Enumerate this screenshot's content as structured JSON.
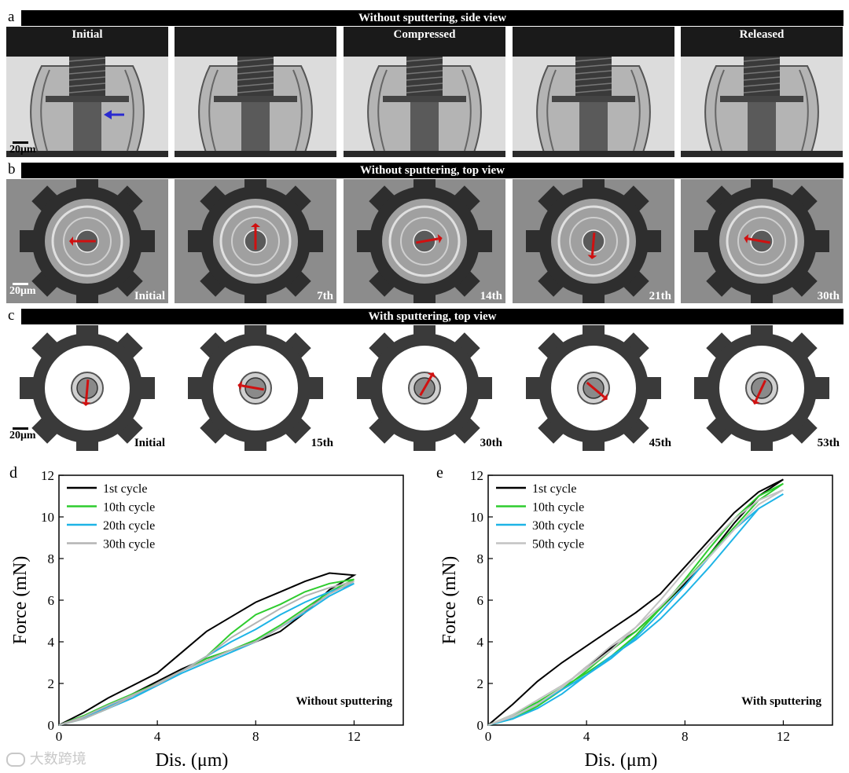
{
  "panels": {
    "a": {
      "letter": "a",
      "title": "Without sputtering, side view",
      "labels": [
        "Initial",
        "",
        "Compressed",
        "",
        "Released"
      ],
      "scale": "20μm"
    },
    "b": {
      "letter": "b",
      "title": "Without sputtering, top view",
      "labels": [
        "Initial",
        "7th",
        "14th",
        "21th",
        "30th"
      ],
      "arrow_angles_deg": [
        180,
        270,
        350,
        95,
        190
      ],
      "scale": "20μm"
    },
    "c": {
      "letter": "c",
      "title": "With sputtering, top view",
      "labels": [
        "Initial",
        "15th",
        "30th",
        "45th",
        "53th"
      ],
      "arrow_angles_deg": [
        95,
        190,
        300,
        40,
        115
      ],
      "scale": "20μm"
    }
  },
  "chart_data": [
    {
      "panel": "d",
      "type": "line",
      "xlabel": "Dis. (μm)",
      "ylabel": "Force (mN)",
      "xlim": [
        0,
        14
      ],
      "ylim": [
        0,
        12
      ],
      "xticks": [
        0,
        4,
        8,
        12
      ],
      "yticks": [
        0,
        2,
        4,
        6,
        8,
        10,
        12
      ],
      "annotation": "Without sputtering",
      "legend_position": "top-left",
      "series": [
        {
          "name": "1st cycle",
          "color": "#000000",
          "x": [
            0,
            1,
            2,
            3,
            4,
            5,
            6,
            7,
            8,
            9,
            10,
            11,
            12,
            11,
            10,
            9,
            8,
            7,
            6,
            5,
            4,
            3,
            2,
            1,
            0
          ],
          "y": [
            0,
            0.6,
            1.3,
            1.9,
            2.5,
            3.5,
            4.5,
            5.2,
            5.9,
            6.4,
            6.9,
            7.3,
            7.2,
            6.5,
            5.4,
            4.5,
            4.0,
            3.6,
            3.2,
            2.7,
            2.1,
            1.5,
            0.9,
            0.35,
            0
          ]
        },
        {
          "name": "10th cycle",
          "color": "#2ecc2e",
          "x": [
            0,
            1,
            2,
            3,
            4,
            5,
            6,
            7,
            8,
            9,
            10,
            11,
            12,
            11,
            10,
            9,
            8,
            7,
            6,
            5,
            4,
            3,
            2,
            1,
            0
          ],
          "y": [
            0,
            0.45,
            1.0,
            1.5,
            2.0,
            2.6,
            3.3,
            4.4,
            5.3,
            5.8,
            6.4,
            6.8,
            7.0,
            6.4,
            5.6,
            4.8,
            4.1,
            3.6,
            3.2,
            2.6,
            2.0,
            1.4,
            0.8,
            0.3,
            0
          ]
        },
        {
          "name": "20th cycle",
          "color": "#1eb4e6",
          "x": [
            0,
            1,
            2,
            3,
            4,
            5,
            6,
            7,
            8,
            9,
            10,
            11,
            12,
            11,
            10,
            9,
            8,
            7,
            6,
            5,
            4,
            3,
            2,
            1,
            0
          ],
          "y": [
            0,
            0.35,
            0.9,
            1.4,
            1.9,
            2.6,
            3.3,
            4.0,
            4.6,
            5.3,
            5.9,
            6.4,
            6.8,
            6.2,
            5.4,
            4.7,
            4.0,
            3.5,
            3.0,
            2.5,
            1.9,
            1.3,
            0.8,
            0.3,
            0
          ]
        },
        {
          "name": "30th cycle",
          "color": "#b4b4b4",
          "x": [
            0,
            1,
            2,
            3,
            4,
            5,
            6,
            7,
            8,
            9,
            10,
            11,
            12,
            11,
            10,
            9,
            8,
            7,
            6,
            5,
            4,
            3,
            2,
            1,
            0
          ],
          "y": [
            0,
            0.4,
            0.95,
            1.45,
            1.95,
            2.6,
            3.3,
            4.2,
            4.9,
            5.6,
            6.2,
            6.6,
            6.9,
            6.3,
            5.5,
            4.7,
            4.0,
            3.6,
            3.1,
            2.6,
            2.0,
            1.4,
            0.8,
            0.3,
            0
          ]
        }
      ]
    },
    {
      "panel": "e",
      "type": "line",
      "xlabel": "Dis. (μm)",
      "ylabel": "Force (mN)",
      "xlim": [
        0,
        14
      ],
      "ylim": [
        0,
        12
      ],
      "xticks": [
        0,
        4,
        8,
        12
      ],
      "yticks": [
        0,
        2,
        4,
        6,
        8,
        10,
        12
      ],
      "annotation": "With sputtering",
      "legend_position": "top-left",
      "series": [
        {
          "name": "1st cycle",
          "color": "#000000",
          "x": [
            0,
            1,
            2,
            3,
            4,
            5,
            6,
            7,
            8,
            9,
            10,
            11,
            12,
            11,
            10,
            9,
            8,
            7,
            6,
            5,
            4,
            3,
            2,
            1,
            0
          ],
          "y": [
            0,
            1.0,
            2.1,
            3.0,
            3.8,
            4.6,
            5.4,
            6.3,
            7.6,
            8.9,
            10.2,
            11.2,
            11.8,
            11.0,
            9.7,
            8.2,
            6.8,
            5.6,
            4.5,
            3.7,
            2.8,
            1.8,
            1.0,
            0.4,
            0
          ]
        },
        {
          "name": "10th cycle",
          "color": "#2ecc2e",
          "x": [
            0,
            1,
            2,
            3,
            4,
            5,
            6,
            7,
            8,
            9,
            10,
            11,
            12,
            11,
            10,
            9,
            8,
            7,
            6,
            5,
            4,
            3,
            2,
            1,
            0
          ],
          "y": [
            0,
            0.5,
            1.1,
            1.8,
            2.5,
            3.3,
            4.3,
            5.6,
            7.0,
            8.5,
            9.9,
            11.0,
            11.6,
            10.8,
            9.5,
            8.2,
            6.9,
            5.6,
            4.5,
            3.6,
            2.6,
            1.7,
            0.9,
            0.3,
            0
          ]
        },
        {
          "name": "30th cycle",
          "color": "#1eb4e6",
          "x": [
            0,
            1,
            2,
            3,
            4,
            5,
            6,
            7,
            8,
            9,
            10,
            11,
            12,
            11,
            10,
            9,
            8,
            7,
            6,
            5,
            4,
            3,
            2,
            1,
            0
          ],
          "y": [
            0,
            0.4,
            1.0,
            1.7,
            2.4,
            3.2,
            4.2,
            5.4,
            6.7,
            8.1,
            9.4,
            10.4,
            11.1,
            10.4,
            9.0,
            7.6,
            6.3,
            5.1,
            4.1,
            3.3,
            2.4,
            1.5,
            0.8,
            0.3,
            0
          ]
        },
        {
          "name": "50th cycle",
          "color": "#c3c3c3",
          "x": [
            0,
            1,
            2,
            3,
            4,
            5,
            6,
            7,
            8,
            9,
            10,
            11,
            12,
            11,
            10,
            9,
            8,
            7,
            6,
            5,
            4,
            3,
            2,
            1,
            0
          ],
          "y": [
            0,
            0.5,
            1.2,
            1.9,
            2.7,
            3.6,
            4.7,
            6.0,
            7.4,
            8.7,
            9.9,
            10.8,
            11.3,
            10.6,
            9.4,
            8.1,
            6.9,
            5.7,
            4.7,
            3.8,
            2.8,
            1.8,
            1.0,
            0.4,
            0
          ]
        }
      ]
    }
  ],
  "watermark": "大数跨境"
}
